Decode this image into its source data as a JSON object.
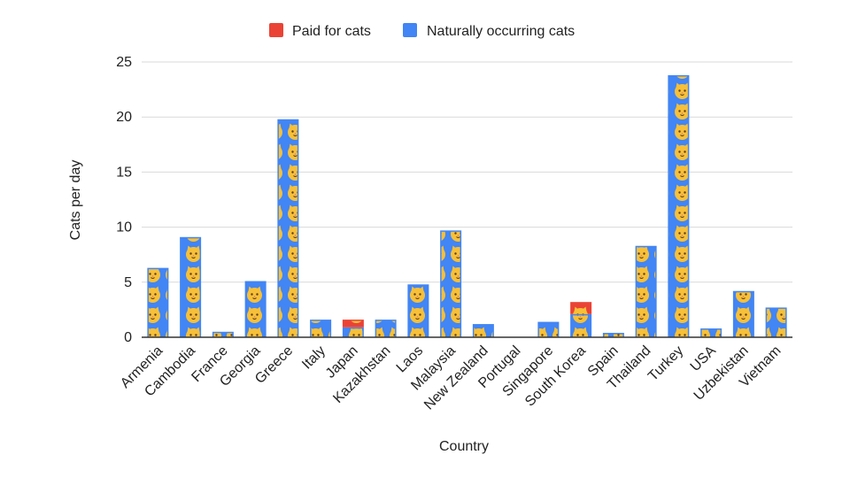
{
  "chart_data": {
    "type": "bar",
    "stacked": true,
    "xlabel": "Country",
    "ylabel": "Cats per day",
    "ylim": [
      0,
      25
    ],
    "yticks": [
      0,
      5,
      10,
      15,
      20,
      25
    ],
    "grid": true,
    "legend_placement": "top",
    "categories": [
      "Armenia",
      "Cambodia",
      "France",
      "Georgia",
      "Greece",
      "Italy",
      "Japan",
      "Kazakhstan",
      "Laos",
      "Malaysia",
      "New Zealand",
      "Portugal",
      "Singapore",
      "South Korea",
      "Spain",
      "Thailand",
      "Turkey",
      "USA",
      "Uzbekistan",
      "Vietnam"
    ],
    "series": [
      {
        "name": "Naturally occurring cats",
        "color": "#4285f4",
        "values": [
          6.3,
          9.1,
          0.5,
          5.1,
          19.8,
          1.6,
          0.9,
          1.6,
          4.8,
          9.7,
          1.2,
          0,
          1.4,
          2.1,
          0.4,
          8.3,
          23.8,
          0.8,
          4.2,
          2.7
        ]
      },
      {
        "name": "Paid for cats",
        "color": "#ea4335",
        "values": [
          0,
          0,
          0,
          0,
          0,
          0,
          0.7,
          0,
          0,
          0,
          0,
          0,
          0,
          1.1,
          0,
          0,
          0,
          0,
          0,
          0
        ]
      }
    ],
    "legend": [
      {
        "name": "Paid for cats",
        "color": "#ea4335"
      },
      {
        "name": "Naturally occurring cats",
        "color": "#4285f4"
      }
    ],
    "bar_icon": "cat-face-icon"
  }
}
